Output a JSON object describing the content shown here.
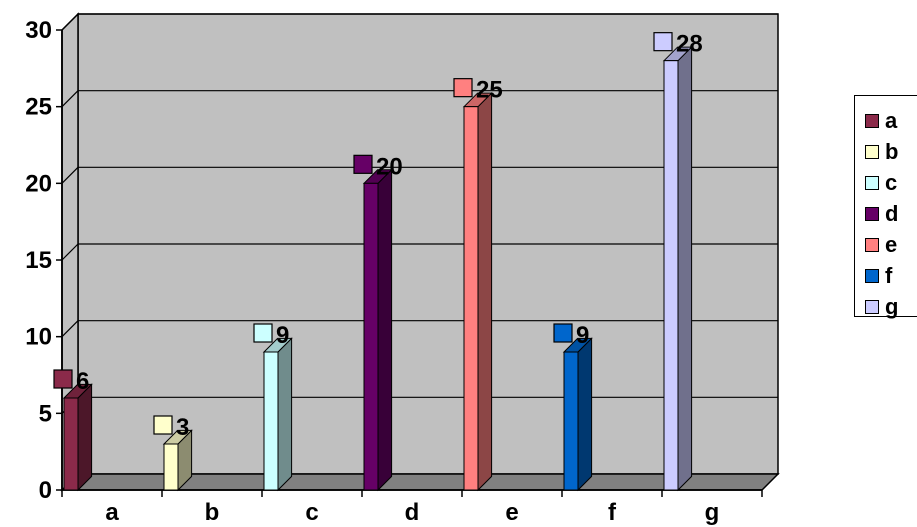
{
  "chart_data": {
    "type": "bar",
    "categories": [
      "a",
      "b",
      "c",
      "d",
      "e",
      "f",
      "g"
    ],
    "series": [
      {
        "name": "a",
        "values": [
          6,
          null,
          null,
          null,
          null,
          null,
          null
        ],
        "color": "#8B2A4A"
      },
      {
        "name": "b",
        "values": [
          null,
          3,
          null,
          null,
          null,
          null,
          null
        ],
        "color": "#FFFFCC"
      },
      {
        "name": "c",
        "values": [
          null,
          null,
          9,
          null,
          null,
          null,
          null
        ],
        "color": "#CCFFFF"
      },
      {
        "name": "d",
        "values": [
          null,
          null,
          null,
          20,
          null,
          null,
          null
        ],
        "color": "#660066"
      },
      {
        "name": "e",
        "values": [
          null,
          null,
          null,
          null,
          25,
          null,
          null
        ],
        "color": "#FF8080"
      },
      {
        "name": "f",
        "values": [
          null,
          null,
          null,
          null,
          null,
          9,
          null
        ],
        "color": "#0066CC"
      },
      {
        "name": "g",
        "values": [
          null,
          null,
          null,
          null,
          null,
          null,
          28
        ],
        "color": "#CCCCFF"
      }
    ],
    "yticks": [
      "0",
      "5",
      "10",
      "15",
      "20",
      "25",
      "30"
    ],
    "ylim": [
      0,
      30
    ],
    "grid": true,
    "legend_position": "right",
    "plot_background": "#C0C0C0",
    "floor_color": "#808080"
  }
}
